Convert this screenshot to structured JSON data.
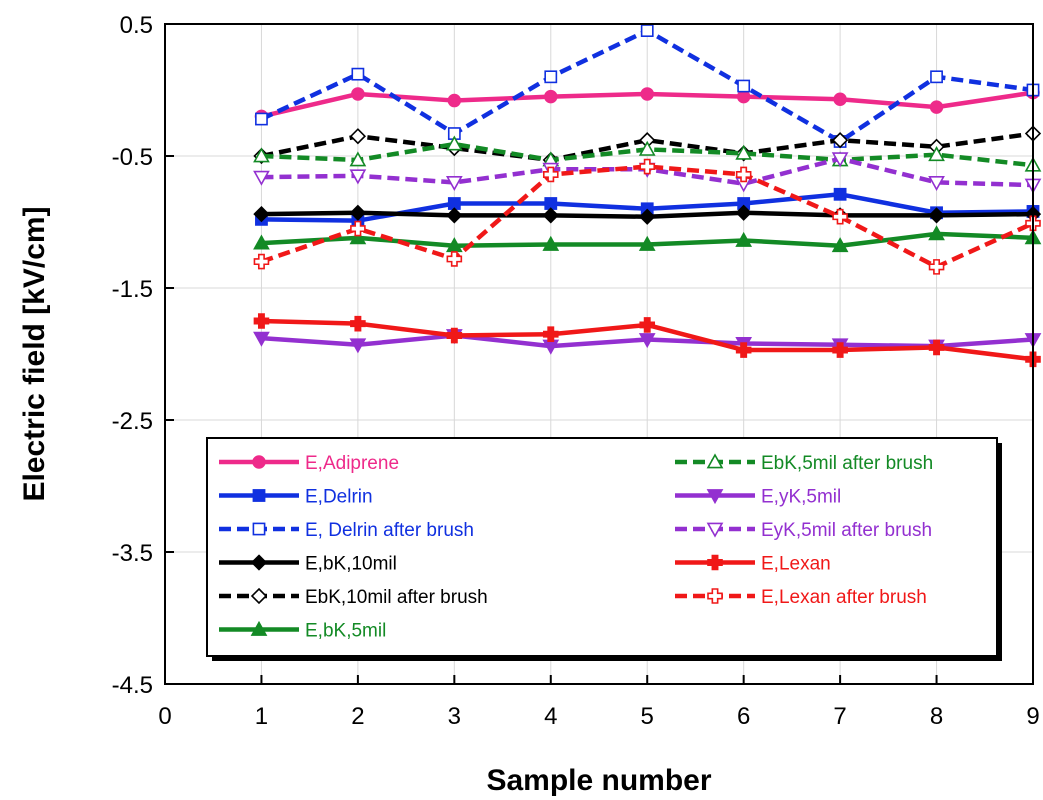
{
  "chart_data": {
    "type": "line",
    "title": "",
    "xlabel": "Sample number",
    "ylabel": "Electric field [kV/cm]",
    "xlim": [
      0,
      9
    ],
    "ylim": [
      -4.5,
      0.5
    ],
    "xticks": [
      0,
      1,
      2,
      3,
      4,
      5,
      6,
      7,
      8,
      9
    ],
    "yticks": [
      0.5,
      -0.5,
      -1.5,
      -2.5,
      -3.5,
      -4.5
    ],
    "grid": true,
    "legend_placement": "bottom-center",
    "x": [
      1,
      2,
      3,
      4,
      5,
      6,
      7,
      8,
      9
    ],
    "series": [
      {
        "name": "E,Adiprene",
        "color": "#ee2a8a",
        "dash": "solid",
        "marker": "circle",
        "filled": true,
        "values": [
          -0.2,
          -0.03,
          -0.08,
          -0.05,
          -0.03,
          -0.05,
          -0.07,
          -0.13,
          -0.02
        ]
      },
      {
        "name": "E,Delrin",
        "color": "#1030e0",
        "dash": "solid",
        "marker": "square",
        "filled": true,
        "values": [
          -0.98,
          -0.99,
          -0.86,
          -0.86,
          -0.9,
          -0.86,
          -0.79,
          -0.93,
          -0.92
        ]
      },
      {
        "name": "E, Delrin after brush",
        "color": "#1030e0",
        "dash": "dashed",
        "marker": "square",
        "filled": false,
        "values": [
          -0.22,
          0.12,
          -0.33,
          0.1,
          0.45,
          0.03,
          -0.39,
          0.1,
          0.0
        ]
      },
      {
        "name": "E,bK,10mil",
        "color": "#000000",
        "dash": "solid",
        "marker": "diamond",
        "filled": true,
        "values": [
          -0.94,
          -0.93,
          -0.95,
          -0.95,
          -0.96,
          -0.93,
          -0.95,
          -0.95,
          -0.94
        ]
      },
      {
        "name": "EbK,10mil after brush",
        "color": "#000000",
        "dash": "dashed",
        "marker": "diamond",
        "filled": false,
        "values": [
          -0.5,
          -0.35,
          -0.44,
          -0.53,
          -0.38,
          -0.48,
          -0.38,
          -0.43,
          -0.33
        ]
      },
      {
        "name": "E,bK,5mil",
        "color": "#138a25",
        "dash": "solid",
        "marker": "triangle-up",
        "filled": true,
        "values": [
          -1.16,
          -1.12,
          -1.18,
          -1.17,
          -1.17,
          -1.14,
          -1.18,
          -1.09,
          -1.12
        ]
      },
      {
        "name": "EbK,5mil after brush",
        "color": "#138a25",
        "dash": "dashed",
        "marker": "triangle-up",
        "filled": false,
        "values": [
          -0.5,
          -0.53,
          -0.41,
          -0.53,
          -0.45,
          -0.48,
          -0.53,
          -0.49,
          -0.57
        ]
      },
      {
        "name": "E,yK,5mil",
        "color": "#9330d0",
        "dash": "solid",
        "marker": "triangle-down",
        "filled": true,
        "values": [
          -1.88,
          -1.93,
          -1.86,
          -1.94,
          -1.89,
          -1.92,
          -1.93,
          -1.94,
          -1.89
        ]
      },
      {
        "name": "EyK,5mil after brush",
        "color": "#9330d0",
        "dash": "dashed",
        "marker": "triangle-down",
        "filled": false,
        "values": [
          -0.66,
          -0.65,
          -0.7,
          -0.6,
          -0.6,
          -0.71,
          -0.52,
          -0.7,
          -0.72
        ]
      },
      {
        "name": "E,Lexan",
        "color": "#f01818",
        "dash": "solid",
        "marker": "cross",
        "filled": true,
        "values": [
          -1.75,
          -1.77,
          -1.86,
          -1.85,
          -1.78,
          -1.97,
          -1.97,
          -1.95,
          -2.04
        ]
      },
      {
        "name": "E,Lexan after brush",
        "color": "#f01818",
        "dash": "dashed",
        "marker": "cross",
        "filled": false,
        "values": [
          -1.3,
          -1.05,
          -1.28,
          -0.64,
          -0.58,
          -0.64,
          -0.96,
          -1.34,
          -1.01
        ]
      }
    ]
  }
}
